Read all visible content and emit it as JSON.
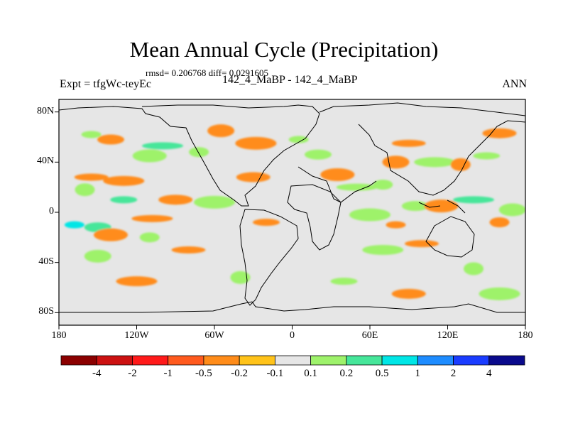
{
  "title": "Mean Annual Cycle (Precipitation)",
  "stats": "rmsd= 0.206768 diff= 0.0291605",
  "experiment": "Expt = tfgWc-teyEc",
  "case": "142_4_MaBP - 142_4_MaBP",
  "season": "ANN",
  "map": {
    "lon_range": [
      -180,
      180
    ],
    "lat_range": [
      -90,
      90
    ],
    "lat_labels": [
      "80N",
      "40N",
      "0",
      "40S",
      "80S"
    ],
    "lon_labels": [
      "180",
      "120W",
      "60W",
      "0",
      "60E",
      "120E",
      "180"
    ],
    "background_color": "#e6e6e6"
  },
  "colorbar": {
    "colors": [
      "#8b0000",
      "#cc1111",
      "#ff1a1a",
      "#ff5a1e",
      "#ff8c1a",
      "#ffc31a",
      "#e6e6e6",
      "#9ef26b",
      "#46e69a",
      "#00e6e6",
      "#1e8cff",
      "#1a3cff",
      "#0a0a8c"
    ],
    "labels": [
      "-4",
      "-2",
      "-1",
      "-0.5",
      "-0.2",
      "-0.1",
      "0.1",
      "0.2",
      "0.5",
      "1",
      "2",
      "4"
    ]
  },
  "anomaly_patches": [
    {
      "lon": -155,
      "lat": 62,
      "color_index": 7
    },
    {
      "lon": -140,
      "lat": 58,
      "color_index": 4
    },
    {
      "lon": -110,
      "lat": 45,
      "color_index": 7
    },
    {
      "lon": -100,
      "lat": 53,
      "color_index": 8
    },
    {
      "lon": -72,
      "lat": 48,
      "color_index": 7
    },
    {
      "lon": -55,
      "lat": 65,
      "color_index": 4
    },
    {
      "lon": -155,
      "lat": 28,
      "color_index": 4
    },
    {
      "lon": -130,
      "lat": 25,
      "color_index": 4
    },
    {
      "lon": -160,
      "lat": 18,
      "color_index": 7
    },
    {
      "lon": -130,
      "lat": 10,
      "color_index": 8
    },
    {
      "lon": -90,
      "lat": 10,
      "color_index": 4
    },
    {
      "lon": -60,
      "lat": 8,
      "color_index": 7
    },
    {
      "lon": -168,
      "lat": -10,
      "color_index": 9
    },
    {
      "lon": -150,
      "lat": -12,
      "color_index": 8
    },
    {
      "lon": -140,
      "lat": -18,
      "color_index": 4
    },
    {
      "lon": -108,
      "lat": -5,
      "color_index": 4
    },
    {
      "lon": -110,
      "lat": -20,
      "color_index": 7
    },
    {
      "lon": -150,
      "lat": -35,
      "color_index": 7
    },
    {
      "lon": -80,
      "lat": -30,
      "color_index": 4
    },
    {
      "lon": -120,
      "lat": -55,
      "color_index": 4
    },
    {
      "lon": -40,
      "lat": -52,
      "color_index": 7
    },
    {
      "lon": -20,
      "lat": -8,
      "color_index": 4
    },
    {
      "lon": -30,
      "lat": 28,
      "color_index": 4
    },
    {
      "lon": -28,
      "lat": 55,
      "color_index": 4
    },
    {
      "lon": 5,
      "lat": 58,
      "color_index": 7
    },
    {
      "lon": 20,
      "lat": 46,
      "color_index": 7
    },
    {
      "lon": 35,
      "lat": 30,
      "color_index": 4
    },
    {
      "lon": 50,
      "lat": 20,
      "color_index": 7
    },
    {
      "lon": 70,
      "lat": 22,
      "color_index": 7
    },
    {
      "lon": 80,
      "lat": 40,
      "color_index": 4
    },
    {
      "lon": 90,
      "lat": 55,
      "color_index": 4
    },
    {
      "lon": 110,
      "lat": 40,
      "color_index": 7
    },
    {
      "lon": 130,
      "lat": 38,
      "color_index": 4
    },
    {
      "lon": 150,
      "lat": 45,
      "color_index": 7
    },
    {
      "lon": 160,
      "lat": 63,
      "color_index": 4
    },
    {
      "lon": 60,
      "lat": -2,
      "color_index": 7
    },
    {
      "lon": 80,
      "lat": -10,
      "color_index": 4
    },
    {
      "lon": 95,
      "lat": 5,
      "color_index": 7
    },
    {
      "lon": 115,
      "lat": 5,
      "color_index": 4
    },
    {
      "lon": 140,
      "lat": 10,
      "color_index": 8
    },
    {
      "lon": 160,
      "lat": -8,
      "color_index": 4
    },
    {
      "lon": 170,
      "lat": 2,
      "color_index": 7
    },
    {
      "lon": 100,
      "lat": -25,
      "color_index": 4
    },
    {
      "lon": 70,
      "lat": -30,
      "color_index": 7
    },
    {
      "lon": 140,
      "lat": -45,
      "color_index": 7
    },
    {
      "lon": 40,
      "lat": -55,
      "color_index": 7
    },
    {
      "lon": 90,
      "lat": -65,
      "color_index": 4
    },
    {
      "lon": 160,
      "lat": -65,
      "color_index": 7
    }
  ]
}
